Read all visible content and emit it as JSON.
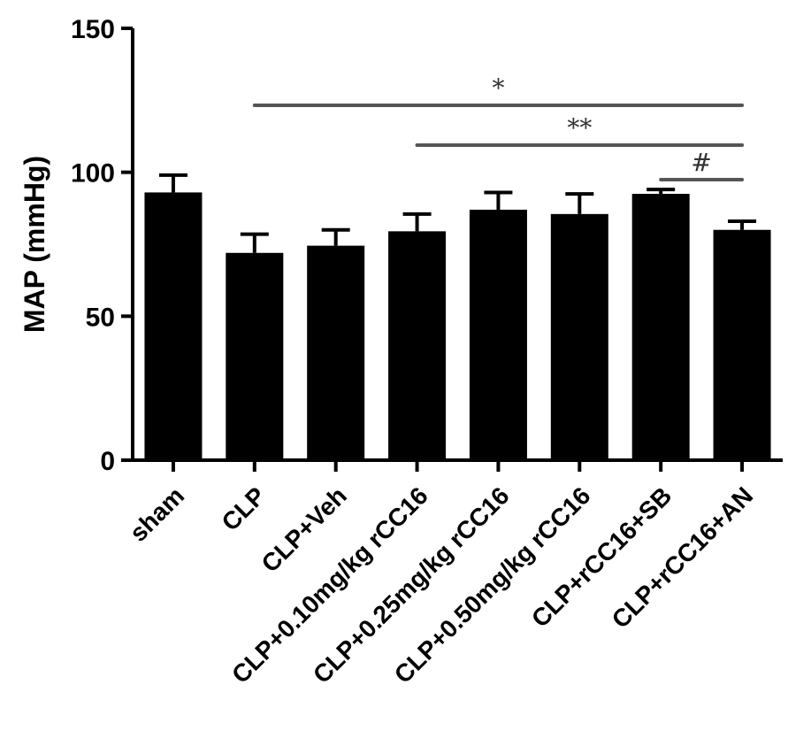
{
  "chart_data": {
    "type": "bar",
    "ylabel": "MAP (mmHg)",
    "xlabel": "",
    "ylim": [
      0,
      150
    ],
    "yticks": [
      0,
      50,
      100,
      150
    ],
    "grid": false,
    "categories": [
      "sham",
      "CLP",
      "CLP+Veh",
      "CLP+0.10mg/kg rCC16",
      "CLP+0.25mg/kg rCC16",
      "CLP+0.50mg/kg rCC16",
      "CLP+rCC16+SB",
      "CLP+rCC16+AN"
    ],
    "values": [
      93,
      72,
      74.5,
      79.5,
      87,
      85.5,
      92.5,
      80
    ],
    "errors": [
      6,
      6.5,
      5.5,
      6,
      6,
      7,
      1.5,
      3
    ],
    "bar_color": "#000000",
    "significance": [
      {
        "label": "*",
        "from": 1,
        "to": 7
      },
      {
        "label": "**",
        "from": 3,
        "to": 7
      },
      {
        "label": "#",
        "from": 6,
        "to": 7
      }
    ],
    "significance_color": "#555555"
  }
}
